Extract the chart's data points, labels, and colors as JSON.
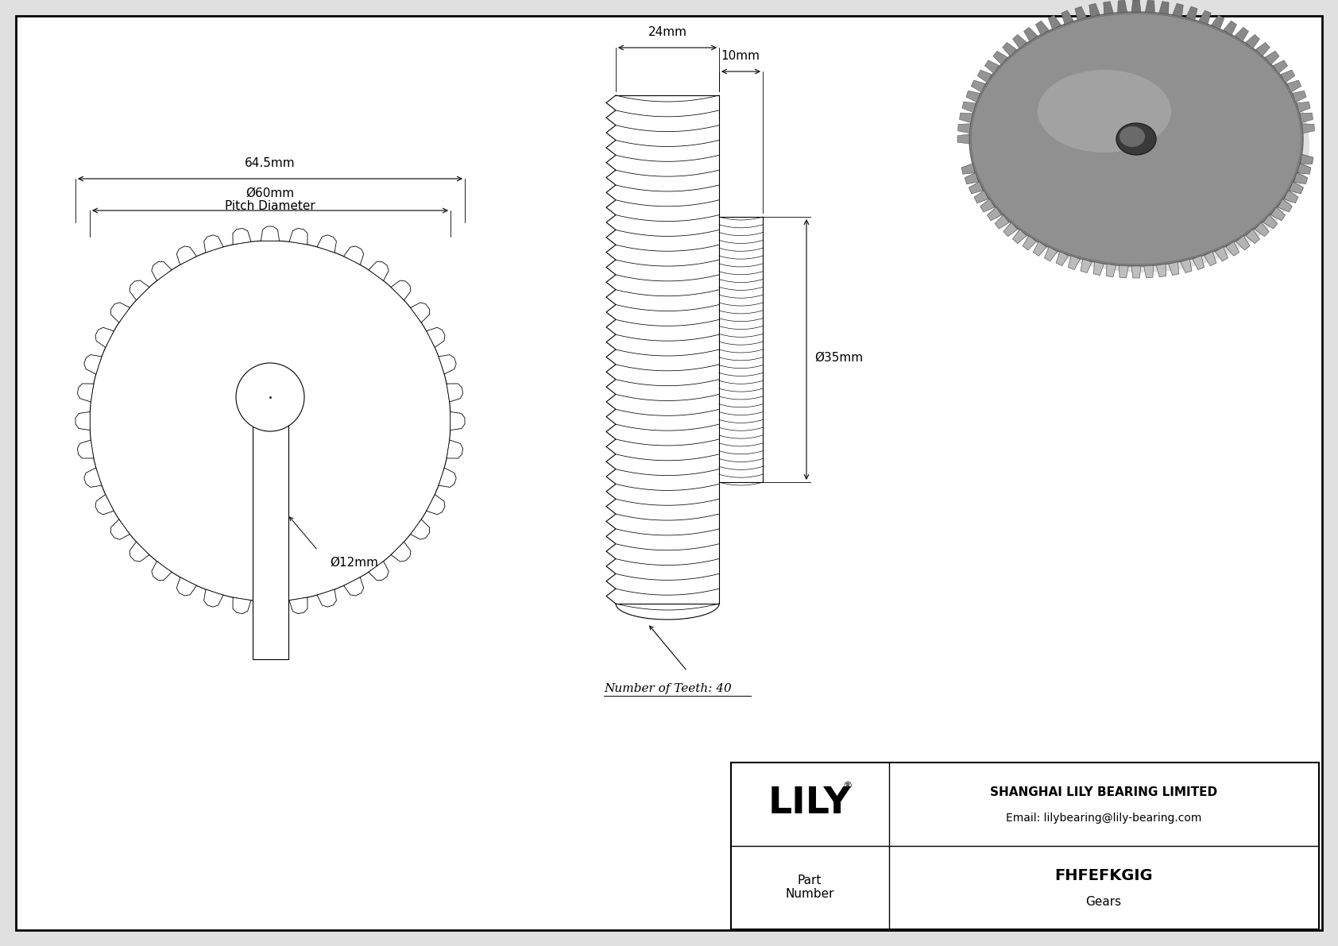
{
  "bg_color": "#e0e0e0",
  "drawing_bg": "#ffffff",
  "line_color": "#000000",
  "dim_color": "#000000",
  "title": "FHFEFKGIG",
  "subtitle": "Gears",
  "company": "SHANGHAI LILY BEARING LIMITED",
  "email": "Email: lilybearing@lily-bearing.com",
  "part_label": "Part\nNumber",
  "logo": "LILY",
  "logo_reg": "®",
  "dim_outer": "64.5mm",
  "dim_pitch_1": "Ø60mm",
  "dim_pitch_2": "Pitch Diameter",
  "dim_bore": "Ø12mm",
  "dim_width": "24mm",
  "dim_hub": "10mm",
  "dim_hub_dia": "Ø35mm",
  "dim_teeth": "Number of Teeth: 40",
  "num_teeth": 40,
  "font_size_dim": 10,
  "font_size_label": 11,
  "font_size_logo": 34,
  "font_size_company": 10,
  "font_size_part": 14,
  "font_size_part_name": 11,
  "gear_lw": 0.8,
  "tooth_lw": 0.6,
  "dim_lw": 0.8
}
